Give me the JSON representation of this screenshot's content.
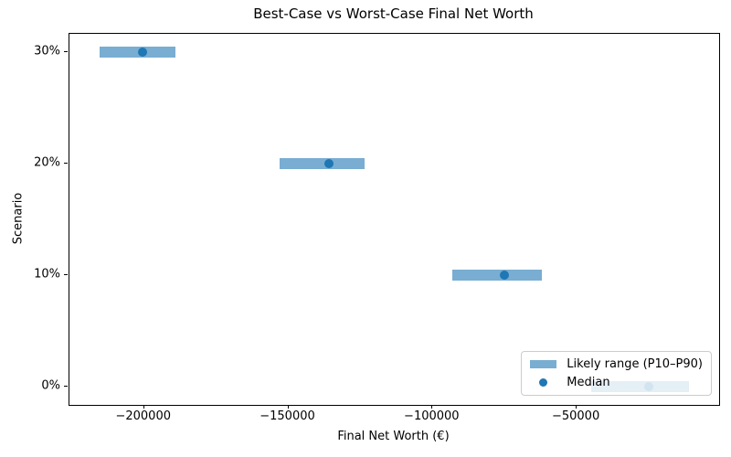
{
  "chart_data": {
    "type": "bar",
    "subtype": "horizontal-range-bars-with-median-points",
    "title": "Best-Case vs Worst-Case Final Net Worth",
    "xlabel": "Final Net Worth (€)",
    "ylabel": "Scenario",
    "categories": [
      "0%",
      "10%",
      "20%",
      "30%"
    ],
    "series": [
      {
        "name": "Likely range (P10–P90)",
        "role": "range",
        "p10": [
          -45000,
          -93000,
          -153000,
          -215500
        ],
        "p90": [
          -11000,
          -62000,
          -123500,
          -189000
        ]
      },
      {
        "name": "Median",
        "role": "point",
        "values": [
          -25000,
          -75000,
          -136000,
          -200500
        ]
      }
    ],
    "xlim": [
      -225900,
      -600
    ],
    "ylim": [
      -0.163,
      3.168
    ],
    "xticks": [
      -200000,
      -150000,
      -100000,
      -50000
    ],
    "xtick_labels": [
      "−200000",
      "−150000",
      "−100000",
      "−50000"
    ],
    "ytick_labels": [
      "0%",
      "10%",
      "20%",
      "30%"
    ],
    "grid": false,
    "legend_position": "lower right",
    "colors": {
      "range_bar": "#79add2",
      "median_dot": "#1f77b4",
      "text": "#000000",
      "legend_border": "#cccccc"
    }
  }
}
